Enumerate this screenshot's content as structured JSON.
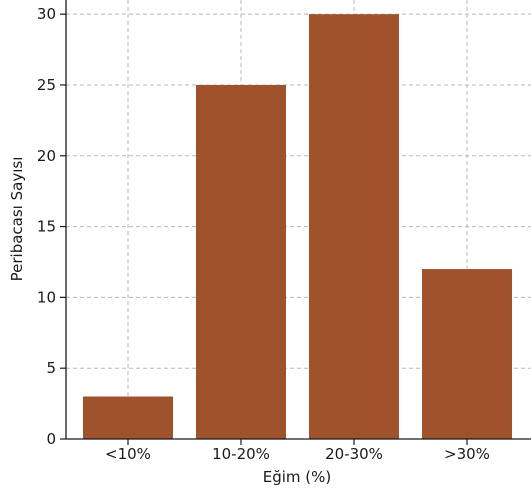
{
  "chart_data": {
    "type": "bar",
    "categories": [
      "<10%",
      "10-20%",
      "20-30%",
      ">30%"
    ],
    "values": [
      3,
      25,
      30,
      12
    ],
    "xlabel": "Eğim (%)",
    "ylabel": "Peribacası Sayısı",
    "ylim": [
      0,
      31
    ],
    "yticks": [
      "0",
      "5",
      "10",
      "15",
      "20",
      "25",
      "30"
    ],
    "grid": true,
    "colors": {
      "bar": "#A0522D",
      "grid": "#b8b8b8",
      "axis": "#1a1a1a"
    }
  }
}
